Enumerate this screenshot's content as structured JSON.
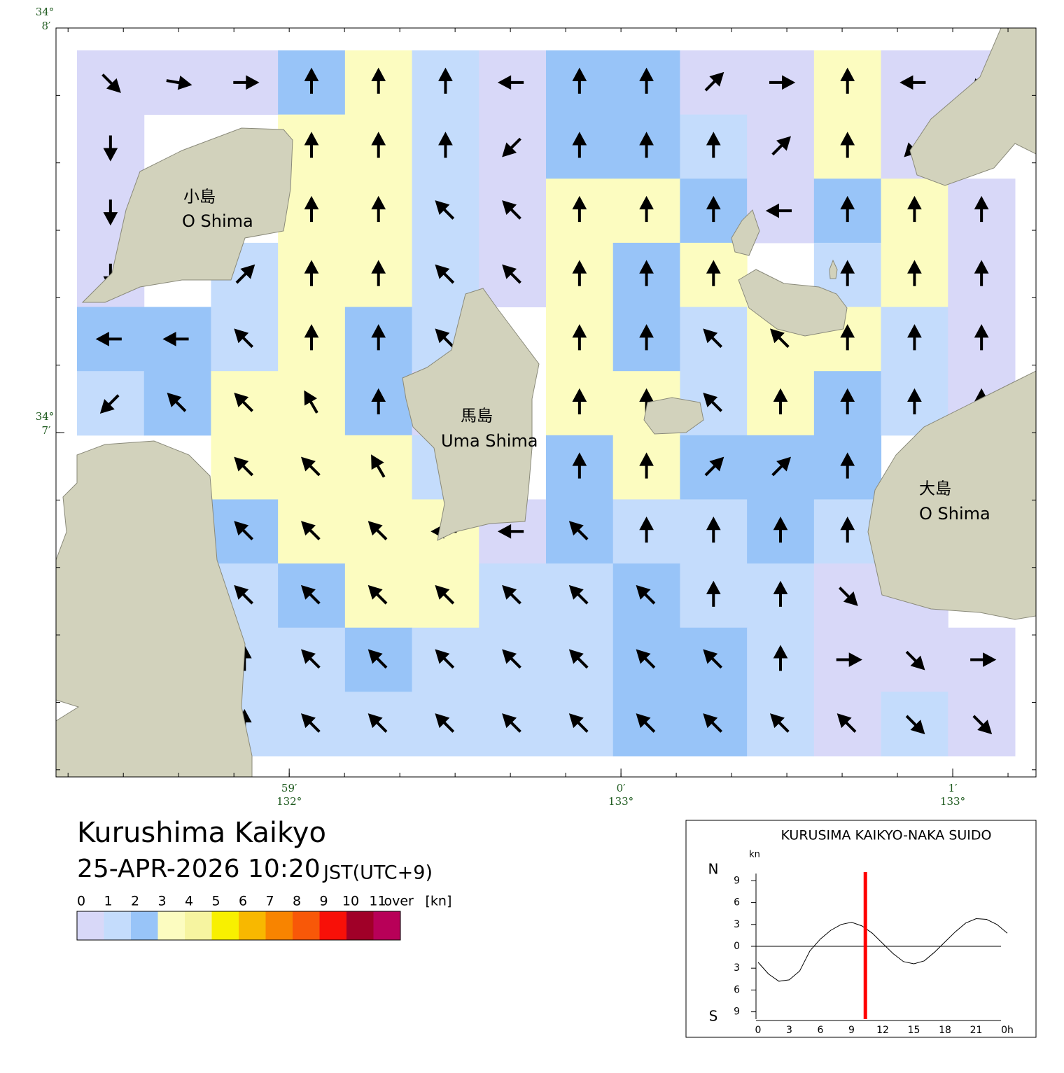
{
  "map": {
    "title": "Kurushima Kaikyo",
    "datetime": "25-APR-2026 10:20",
    "timezone": "JST(UTC+9)",
    "xlim": [
      -1.703,
      1.251
    ],
    "ylim": [
      6.149,
      8.0
    ],
    "minor_ticks_per_minute": 6,
    "lon_ticks": [
      {
        "value": -1,
        "label": "59′",
        "deg_label": "132°"
      },
      {
        "value": 0,
        "label": "0′",
        "deg_label": "133°"
      },
      {
        "value": 1,
        "label": "1′",
        "deg_label": "133°"
      }
    ],
    "lat_ticks": [
      {
        "value": 8,
        "label": "8′",
        "deg_label": "34°"
      },
      {
        "value": 7,
        "label": "7′",
        "deg_label": "34°"
      }
    ],
    "place_labels": [
      {
        "ja": "小島",
        "en": "O Shima"
      },
      {
        "ja": "馬島",
        "en": "Uma Shima"
      },
      {
        "ja": "大島",
        "en": "O Shima"
      }
    ],
    "speed_kn": [
      [
        0.5,
        0.5,
        0.5,
        2.5,
        3.5,
        1.5,
        0.5,
        2.5,
        2.5,
        0.5,
        0.5,
        3.5,
        0.5,
        0.5
      ],
      [
        0.5,
        null,
        null,
        3.5,
        3.5,
        1.5,
        0.5,
        2.5,
        2.5,
        1.5,
        0.5,
        3.5,
        0.5,
        null
      ],
      [
        0.5,
        null,
        null,
        3.5,
        3.5,
        1.5,
        0.5,
        3.5,
        3.5,
        2.5,
        0.5,
        2.5,
        3.5,
        0.5
      ],
      [
        0.5,
        null,
        1.5,
        3.5,
        3.5,
        1.5,
        0.5,
        3.5,
        2.5,
        3.5,
        null,
        1.5,
        3.5,
        0.5
      ],
      [
        2.5,
        2.5,
        1.5,
        3.5,
        2.5,
        1.5,
        null,
        3.5,
        2.5,
        1.5,
        3.5,
        3.5,
        1.5,
        0.5
      ],
      [
        1.5,
        2.5,
        3.5,
        3.5,
        2.5,
        0.5,
        null,
        3.5,
        3.5,
        1.5,
        3.5,
        2.5,
        1.5,
        0.5
      ],
      [
        null,
        null,
        3.5,
        3.5,
        3.5,
        1.5,
        null,
        2.5,
        3.5,
        2.5,
        2.5,
        2.5,
        null,
        null
      ],
      [
        null,
        null,
        2.5,
        3.5,
        3.5,
        3.5,
        0.5,
        2.5,
        1.5,
        1.5,
        2.5,
        1.5,
        null,
        null
      ],
      [
        null,
        null,
        1.5,
        2.5,
        3.5,
        3.5,
        1.5,
        1.5,
        2.5,
        1.5,
        1.5,
        0.5,
        0.5,
        null
      ],
      [
        null,
        null,
        1.5,
        1.5,
        2.5,
        1.5,
        1.5,
        1.5,
        2.5,
        2.5,
        1.5,
        0.5,
        0.5,
        0.5
      ],
      [
        null,
        null,
        1.5,
        1.5,
        1.5,
        1.5,
        1.5,
        1.5,
        2.5,
        2.5,
        1.5,
        0.5,
        1.5,
        0.5
      ]
    ],
    "direction_deg": [
      [
        135,
        100,
        90,
        0,
        0,
        0,
        270,
        0,
        0,
        45,
        90,
        0,
        270,
        225
      ],
      [
        180,
        null,
        null,
        0,
        0,
        0,
        225,
        0,
        0,
        0,
        45,
        0,
        225,
        null
      ],
      [
        180,
        null,
        null,
        0,
        0,
        315,
        315,
        0,
        0,
        0,
        270,
        0,
        0,
        0
      ],
      [
        180,
        null,
        45,
        0,
        0,
        315,
        315,
        0,
        0,
        0,
        null,
        0,
        0,
        0
      ],
      [
        270,
        270,
        315,
        0,
        0,
        315,
        null,
        0,
        0,
        315,
        315,
        0,
        0,
        0
      ],
      [
        225,
        315,
        315,
        330,
        0,
        315,
        null,
        0,
        0,
        315,
        0,
        0,
        0,
        0
      ],
      [
        null,
        null,
        315,
        315,
        330,
        0,
        null,
        0,
        0,
        45,
        45,
        0,
        null,
        null
      ],
      [
        null,
        null,
        315,
        315,
        315,
        270,
        270,
        315,
        0,
        0,
        0,
        0,
        null,
        null
      ],
      [
        null,
        null,
        315,
        315,
        315,
        315,
        315,
        315,
        315,
        0,
        0,
        135,
        135,
        null
      ],
      [
        null,
        null,
        0,
        315,
        315,
        315,
        315,
        315,
        315,
        315,
        0,
        90,
        135,
        90
      ],
      [
        null,
        null,
        0,
        315,
        315,
        315,
        315,
        315,
        315,
        315,
        315,
        315,
        135,
        135
      ]
    ]
  },
  "legend": {
    "boundaries": [
      0,
      1,
      2,
      3,
      4,
      5,
      6,
      7,
      8,
      9,
      10,
      11
    ],
    "over_label": "over",
    "unit": "[kn]",
    "colors": [
      "#d8d8f8",
      "#c4dcfc",
      "#98c4f8",
      "#fcfcc0",
      "#f6f4a0",
      "#f8f000",
      "#f8b800",
      "#f88400",
      "#f85808",
      "#f81008",
      "#a00028",
      "#b80058"
    ]
  },
  "chart_data": {
    "type": "line",
    "title": "KURUSIMA KAIKYO-NAKA SUIDO",
    "y_unit": "kn",
    "north_label": "N",
    "south_label": "S",
    "color": "#000000",
    "marker_color": "#ff0000",
    "current_time_h": 10.33,
    "x": [
      0,
      1,
      2,
      3,
      4,
      5,
      6,
      7,
      8,
      9,
      10,
      11,
      12,
      13,
      14,
      15,
      16,
      17,
      18,
      19,
      20,
      21,
      22,
      23,
      24
    ],
    "values": [
      -2.2,
      -3.8,
      -4.8,
      -4.6,
      -3.4,
      -0.6,
      1.0,
      2.2,
      3.0,
      3.3,
      2.8,
      1.8,
      0.4,
      -1.0,
      -2.1,
      -2.4,
      -2.0,
      -0.8,
      0.6,
      2.0,
      3.2,
      3.8,
      3.7,
      3.0,
      1.8
    ],
    "xlim": [
      0,
      24
    ],
    "ylim": [
      -10,
      10
    ],
    "xticks": [
      0,
      3,
      6,
      9,
      12,
      15,
      18,
      21,
      {
        "value": 24,
        "label": "0h"
      }
    ],
    "yticks": [
      9,
      6,
      3,
      0,
      {
        "value": -3,
        "label": "3"
      },
      {
        "value": -6,
        "label": "6"
      },
      {
        "value": -9,
        "label": "9"
      }
    ]
  }
}
